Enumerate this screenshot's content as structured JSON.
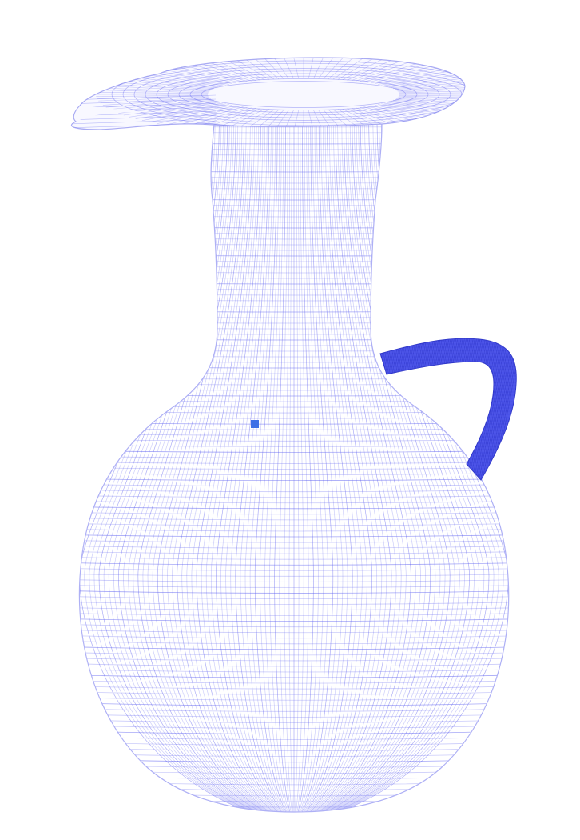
{
  "scene": {
    "object": "wireframe-pitcher",
    "colors": {
      "background": "#ffffff",
      "mesh_line": "#5b5ef0",
      "outline": "#aeb0f5",
      "handle_fill": "#4a52e8",
      "handle_line": "#2f36c8",
      "selection_marker": "#3d6fe6"
    },
    "selected_vertex": {
      "visible": true
    }
  }
}
